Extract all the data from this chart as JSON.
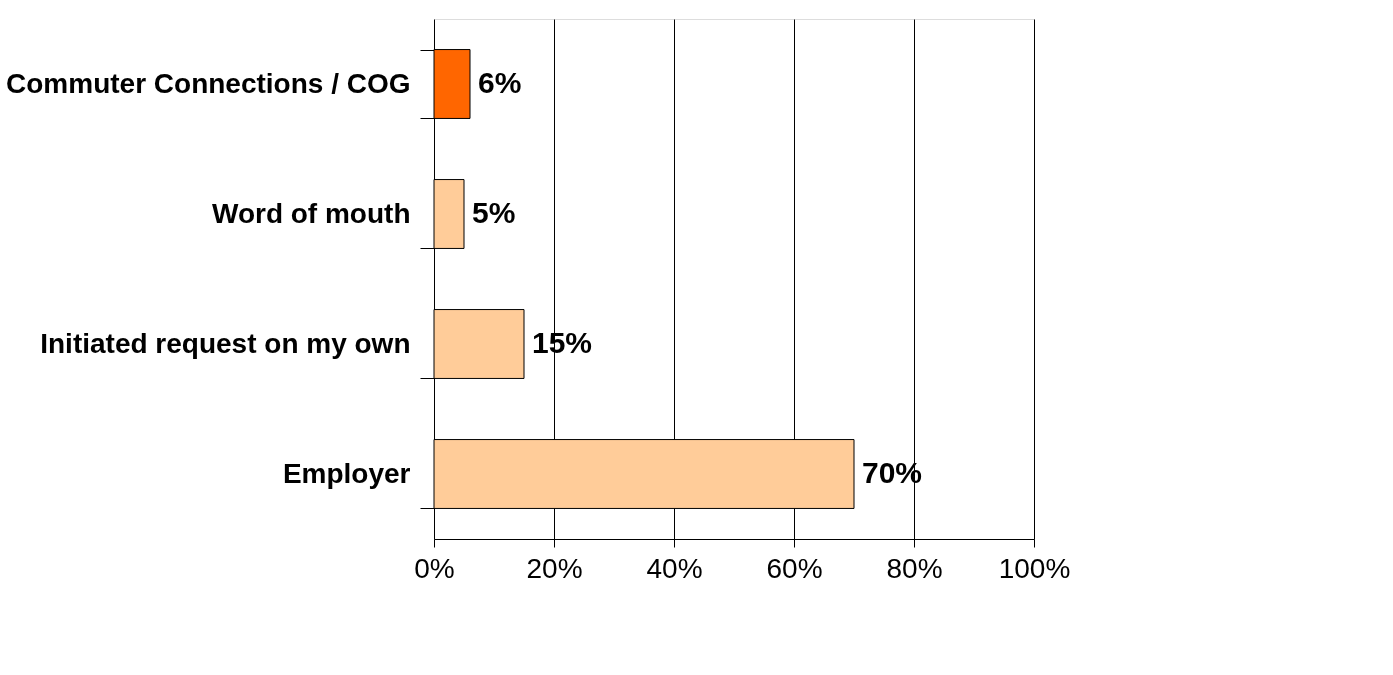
{
  "chart_data": {
    "type": "bar",
    "orientation": "horizontal",
    "categories": [
      "Commuter Connections / COG",
      "Word of mouth",
      "Initiated request on my own",
      "Employer"
    ],
    "values": [
      6,
      5,
      15,
      70
    ],
    "colors": [
      "#ff6600",
      "#ffcc99",
      "#ffcc99",
      "#ffcc99"
    ],
    "value_labels": [
      "6%",
      "5%",
      "15%",
      "70%"
    ],
    "xlim": [
      0,
      100
    ],
    "xticks": [
      {
        "value": 0,
        "label": "0%"
      },
      {
        "value": 20,
        "label": "20%"
      },
      {
        "value": 40,
        "label": "40%"
      },
      {
        "value": 60,
        "label": "60%"
      },
      {
        "value": 80,
        "label": "80%"
      },
      {
        "value": 100,
        "label": "100%"
      }
    ],
    "grid": "x"
  }
}
